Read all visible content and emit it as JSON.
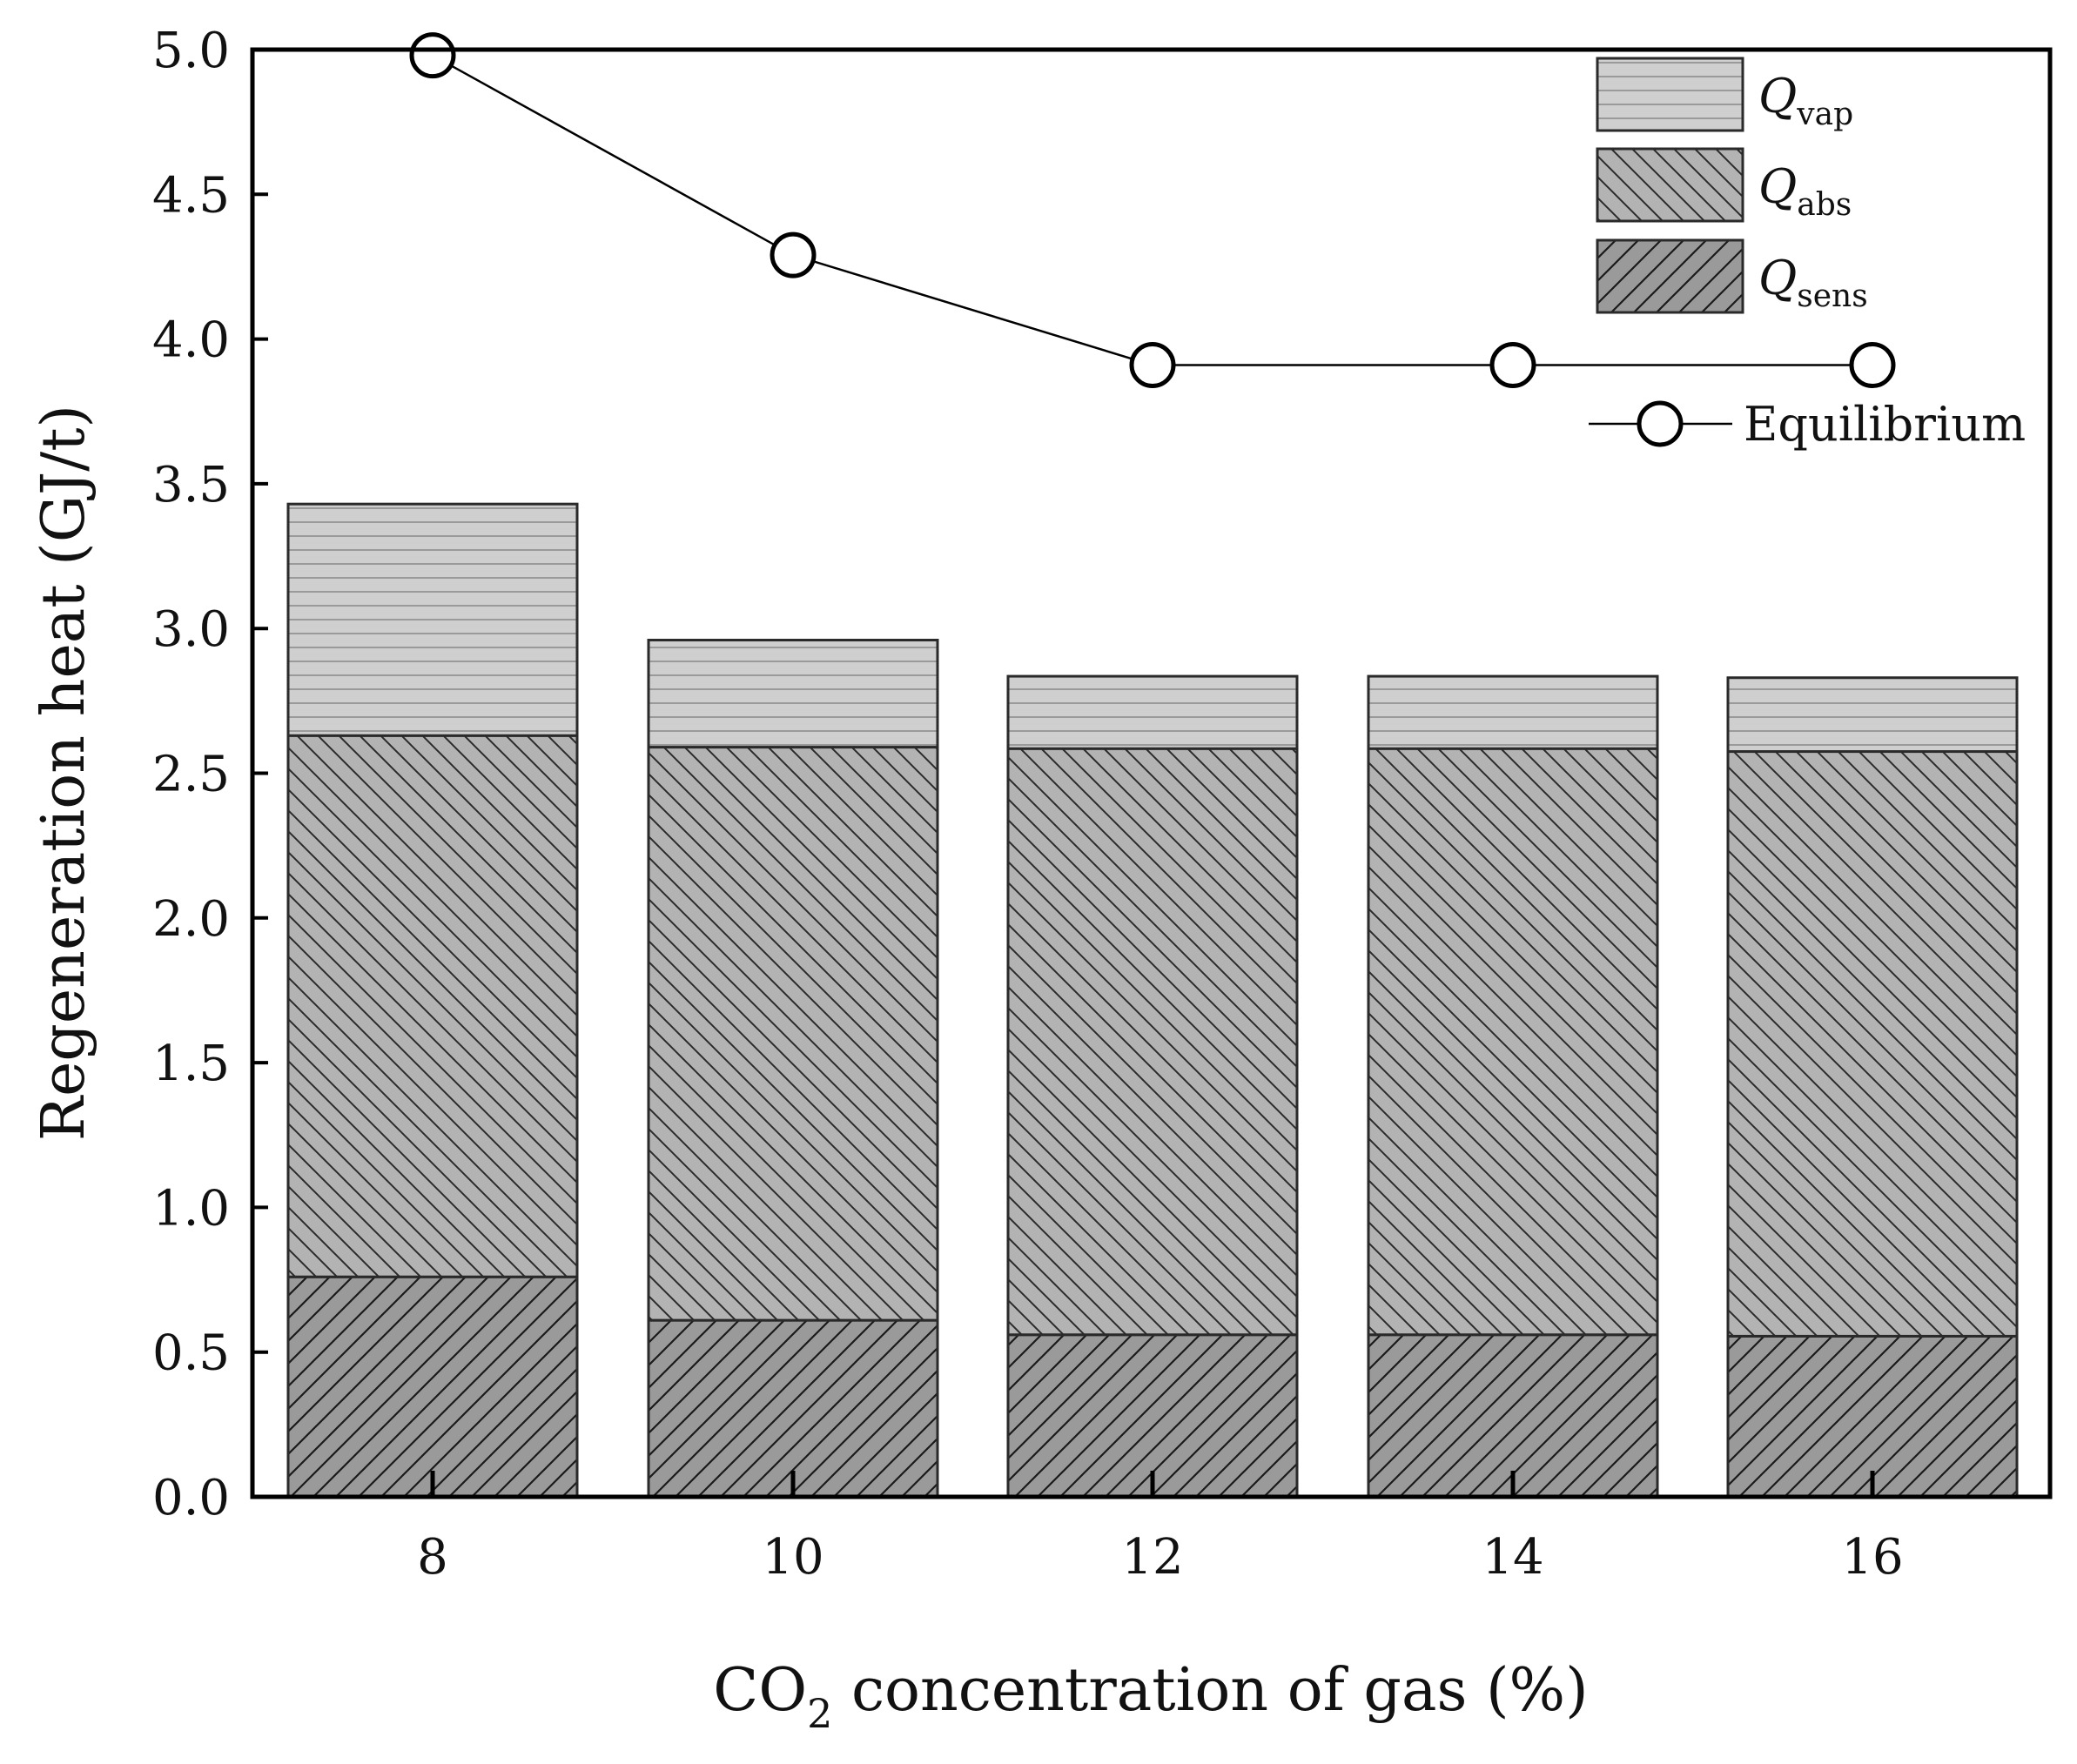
{
  "chart_data": {
    "type": "bar",
    "stacked": true,
    "title": "",
    "categories": [
      "8",
      "10",
      "12",
      "14",
      "16"
    ],
    "series": [
      {
        "name": "Q_sens",
        "symbol": "Q",
        "subscript": "sens",
        "values": [
          0.76,
          0.61,
          0.56,
          0.56,
          0.555
        ],
        "color": "#9a9a9a",
        "pattern": "diagonal-up"
      },
      {
        "name": "Q_abs",
        "symbol": "Q",
        "subscript": "abs",
        "values": [
          1.87,
          1.98,
          2.025,
          2.025,
          2.02
        ],
        "color": "#b3b3b3",
        "pattern": "diagonal-down"
      },
      {
        "name": "Q_vap",
        "symbol": "Q",
        "subscript": "vap",
        "values": [
          0.8,
          0.37,
          0.25,
          0.25,
          0.255
        ],
        "color": "#cfcfcf",
        "pattern": "horizontal"
      }
    ],
    "line_series": {
      "name": "Equilibrium",
      "values": [
        4.98,
        4.29,
        3.91,
        3.91,
        3.91
      ],
      "marker": "open-circle",
      "color": "#000000"
    },
    "xlabel": {
      "main": "CO",
      "sub": "2",
      "rest": " concentration of gas (%)"
    },
    "ylabel": "Regeneration heat (GJ/t)",
    "ylim": [
      0.0,
      5.0
    ],
    "yticks": [
      "0.0",
      "0.5",
      "1.0",
      "1.5",
      "2.0",
      "2.5",
      "3.0",
      "3.5",
      "4.0",
      "4.5",
      "5.0"
    ],
    "legend_position": "top-right"
  }
}
